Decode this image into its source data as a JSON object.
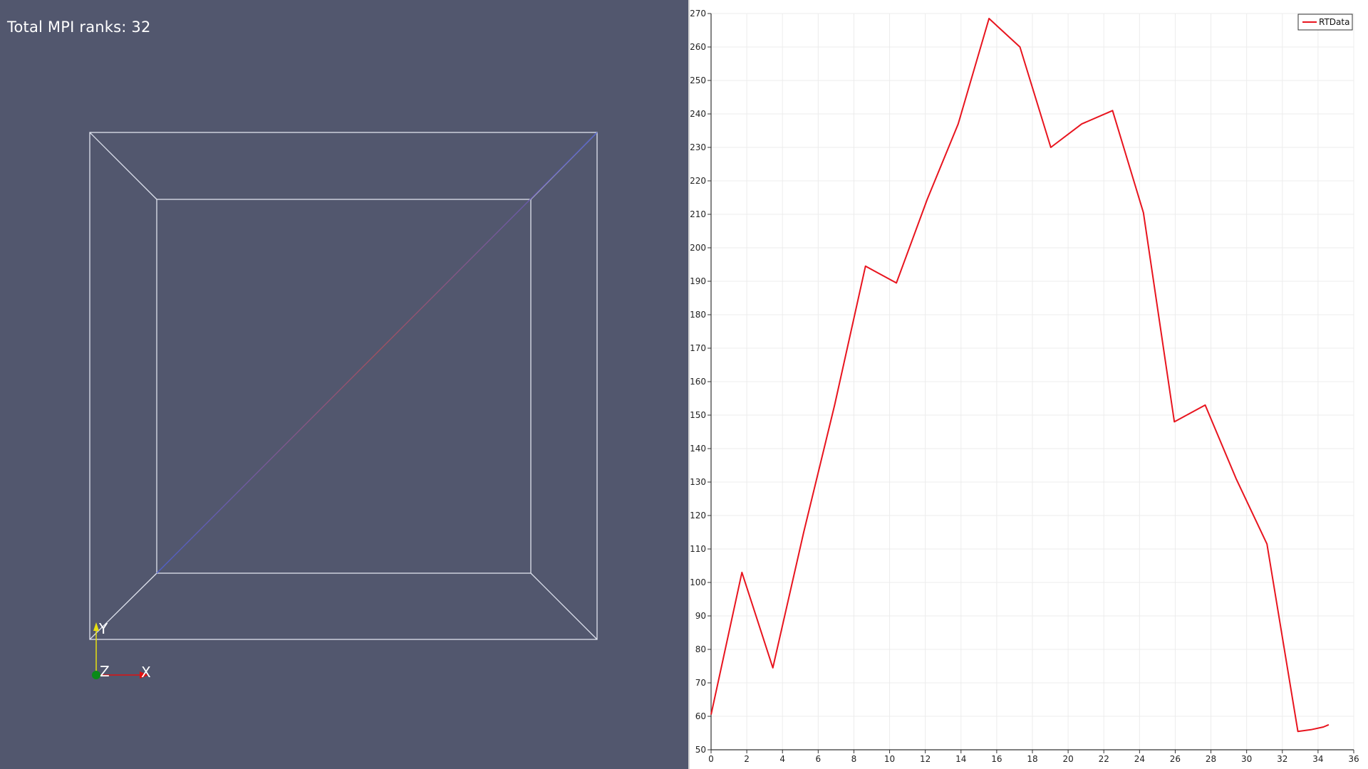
{
  "render_view": {
    "background": "#52576e",
    "ranks_label": "Total MPI ranks: 32",
    "outline_color": "#dfe3ee",
    "orientation_axes": {
      "x_label": "X",
      "y_label": "Y",
      "z_label": "Z",
      "x_color": "#e01010",
      "y_color": "#e8e010",
      "z_color": "#0a8a18"
    }
  },
  "chart_data": {
    "type": "line",
    "series": [
      {
        "name": "RTData",
        "color": "#e8141e",
        "x": [
          0,
          1.73,
          3.46,
          5.19,
          6.92,
          8.65,
          10.38,
          12.11,
          13.84,
          15.57,
          17.3,
          19.03,
          20.76,
          22.49,
          24.22,
          25.95,
          27.68,
          29.41,
          31.14,
          32.87,
          33.6,
          34.3,
          34.6
        ],
        "values": [
          60.5,
          103,
          74.5,
          115,
          153,
          194.5,
          189.5,
          214.5,
          237,
          268.5,
          260,
          230,
          237,
          241,
          210.5,
          148,
          153,
          131,
          111.5,
          55.5,
          56,
          56.8,
          57.5
        ]
      }
    ],
    "xlim": [
      0,
      36
    ],
    "ylim": [
      50,
      270
    ],
    "x_ticks": [
      0,
      2,
      4,
      6,
      8,
      10,
      12,
      14,
      16,
      18,
      20,
      22,
      24,
      26,
      28,
      30,
      32,
      34,
      36
    ],
    "y_ticks": [
      50,
      60,
      70,
      80,
      90,
      100,
      110,
      120,
      130,
      140,
      150,
      160,
      170,
      180,
      190,
      200,
      210,
      220,
      230,
      240,
      250,
      260,
      270
    ],
    "grid": true,
    "legend": "top-right",
    "title": "",
    "xlabel": "",
    "ylabel": ""
  }
}
